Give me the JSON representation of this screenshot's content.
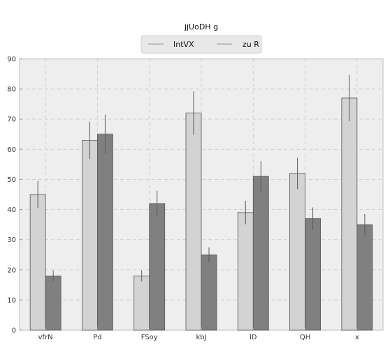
{
  "chart_data": {
    "type": "bar",
    "title": "jjUoDH g",
    "xlabel": "",
    "ylabel": "",
    "categories": [
      "vfrN",
      "Pd",
      "FSoy",
      "kbJ",
      "lD",
      "QH",
      "x"
    ],
    "series": [
      {
        "name": "IntVX",
        "values": [
          45,
          63,
          18,
          72,
          39,
          52,
          77
        ],
        "errors": [
          4.5,
          6.2,
          1.8,
          7.2,
          3.9,
          5.2,
          7.7
        ],
        "color": "#d3d3d3"
      },
      {
        "name": "zu R",
        "values": [
          18,
          65,
          42,
          25,
          51,
          37,
          35
        ],
        "errors": [
          1.8,
          6.5,
          4.2,
          2.5,
          5.1,
          3.7,
          3.5
        ],
        "color": "#808080"
      }
    ],
    "ylim": [
      0,
      90
    ],
    "yticks": [
      0,
      10,
      20,
      30,
      40,
      50,
      60,
      70,
      80,
      90
    ],
    "grid": true,
    "legend_position": "top-center",
    "plot_background": "#eeeeee"
  }
}
